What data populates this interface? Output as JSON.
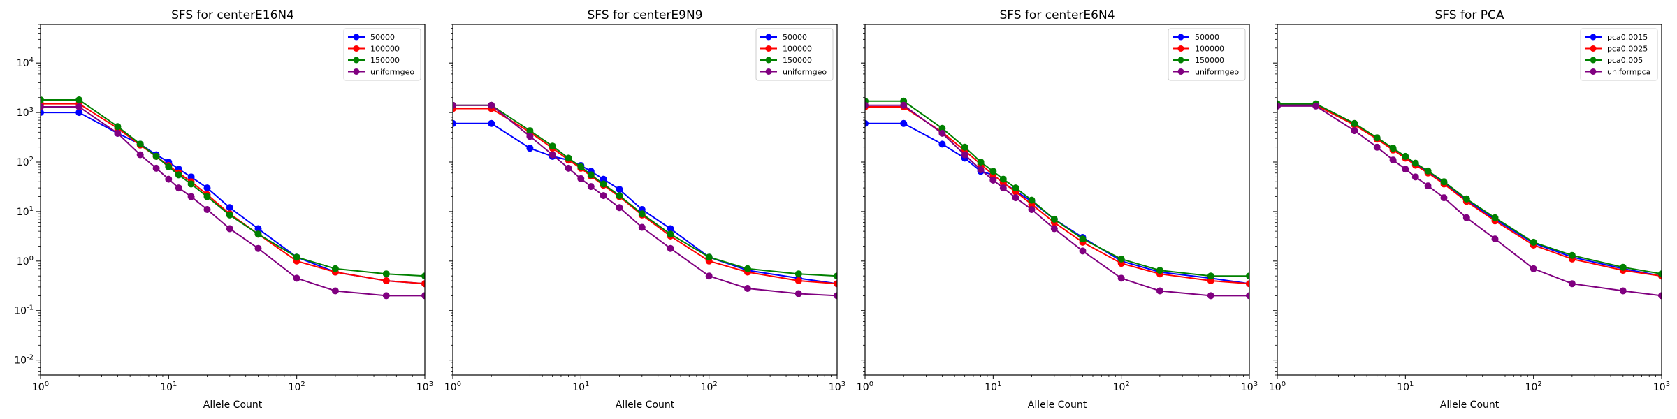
{
  "figure": {
    "xlabel": "Allele Count"
  },
  "chart_data": [
    {
      "type": "line",
      "title": "SFS for centerE16N4",
      "xlabel": "Allele Count",
      "ylabel": "",
      "xscale": "log",
      "yscale": "log",
      "xlim": [
        1,
        1000
      ],
      "ylim": [
        0.005,
        60000
      ],
      "xticks": [
        "10^0",
        "10^1",
        "10^2",
        "10^3"
      ],
      "yticks": [
        "10^-2",
        "10^-1",
        "10^0",
        "10^1",
        "10^2",
        "10^3",
        "10^4"
      ],
      "legend_position": "top-right",
      "series": [
        {
          "name": "50000",
          "color": "#0000ff",
          "x": [
            1,
            2,
            4,
            6,
            8,
            10,
            12,
            15,
            20,
            30,
            50,
            100,
            200,
            500,
            1000
          ],
          "y": [
            1000,
            1000,
            380,
            230,
            140,
            100,
            72,
            50,
            30,
            12,
            4.5,
            1.2,
            0.6,
            0.4,
            0.35
          ]
        },
        {
          "name": "100000",
          "color": "#ff0000",
          "x": [
            1,
            2,
            4,
            6,
            8,
            10,
            12,
            15,
            20,
            30,
            50,
            100,
            200,
            500,
            1000
          ],
          "y": [
            1500,
            1500,
            480,
            220,
            130,
            85,
            60,
            40,
            22,
            9,
            3.5,
            1.0,
            0.6,
            0.4,
            0.35
          ]
        },
        {
          "name": "150000",
          "color": "#008000",
          "x": [
            1,
            2,
            4,
            6,
            8,
            10,
            12,
            15,
            20,
            30,
            50,
            100,
            200,
            500,
            1000
          ],
          "y": [
            1800,
            1800,
            520,
            230,
            130,
            80,
            55,
            36,
            20,
            8.5,
            3.5,
            1.2,
            0.7,
            0.55,
            0.5
          ]
        },
        {
          "name": "uniformgeo",
          "color": "#800080",
          "x": [
            1,
            2,
            4,
            6,
            8,
            10,
            12,
            15,
            20,
            30,
            50,
            100,
            200,
            500,
            1000
          ],
          "y": [
            1300,
            1300,
            380,
            140,
            75,
            45,
            30,
            20,
            11,
            4.5,
            1.8,
            0.45,
            0.25,
            0.2,
            0.2
          ]
        }
      ]
    },
    {
      "type": "line",
      "title": "SFS for centerE9N9",
      "xlabel": "Allele Count",
      "ylabel": "",
      "xscale": "log",
      "yscale": "log",
      "xlim": [
        1,
        1000
      ],
      "ylim": [
        0.005,
        60000
      ],
      "xticks": [
        "10^0",
        "10^1",
        "10^2",
        "10^3"
      ],
      "yticks": [],
      "legend_position": "top-right",
      "series": [
        {
          "name": "50000",
          "color": "#0000ff",
          "x": [
            1,
            2,
            4,
            6,
            8,
            10,
            12,
            15,
            20,
            30,
            50,
            100,
            200,
            500,
            1000
          ],
          "y": [
            600,
            600,
            190,
            130,
            110,
            85,
            65,
            45,
            28,
            11,
            4.5,
            1.2,
            0.65,
            0.45,
            0.35
          ]
        },
        {
          "name": "100000",
          "color": "#ff0000",
          "x": [
            1,
            2,
            4,
            6,
            8,
            10,
            12,
            15,
            20,
            30,
            50,
            100,
            200,
            500,
            1000
          ],
          "y": [
            1200,
            1200,
            400,
            190,
            110,
            75,
            52,
            34,
            20,
            8.5,
            3.2,
            1.0,
            0.6,
            0.4,
            0.35
          ]
        },
        {
          "name": "150000",
          "color": "#008000",
          "x": [
            1,
            2,
            4,
            6,
            8,
            10,
            12,
            15,
            20,
            30,
            50,
            100,
            200,
            500,
            1000
          ],
          "y": [
            1400,
            1400,
            430,
            210,
            120,
            80,
            55,
            36,
            21,
            9,
            3.5,
            1.2,
            0.7,
            0.55,
            0.5
          ]
        },
        {
          "name": "uniformgeo",
          "color": "#800080",
          "x": [
            1,
            2,
            4,
            6,
            8,
            10,
            12,
            15,
            20,
            30,
            50,
            100,
            200,
            500,
            1000
          ],
          "y": [
            1400,
            1400,
            330,
            140,
            75,
            46,
            32,
            21,
            12,
            4.8,
            1.8,
            0.5,
            0.28,
            0.22,
            0.2
          ]
        }
      ]
    },
    {
      "type": "line",
      "title": "SFS for centerE6N4",
      "xlabel": "Allele Count",
      "ylabel": "",
      "xscale": "log",
      "yscale": "log",
      "xlim": [
        1,
        1000
      ],
      "ylim": [
        0.005,
        60000
      ],
      "xticks": [
        "10^0",
        "10^1",
        "10^2",
        "10^3"
      ],
      "yticks": [],
      "legend_position": "top-right",
      "series": [
        {
          "name": "50000",
          "color": "#0000ff",
          "x": [
            1,
            2,
            4,
            6,
            8,
            10,
            12,
            15,
            20,
            30,
            50,
            100,
            200,
            500,
            1000
          ],
          "y": [
            600,
            600,
            230,
            120,
            65,
            55,
            38,
            26,
            16,
            7,
            3,
            1.0,
            0.6,
            0.45,
            0.35
          ]
        },
        {
          "name": "100000",
          "color": "#ff0000",
          "x": [
            1,
            2,
            4,
            6,
            8,
            10,
            12,
            15,
            20,
            30,
            50,
            100,
            200,
            500,
            1000
          ],
          "y": [
            1300,
            1300,
            400,
            170,
            90,
            55,
            38,
            25,
            14,
            6,
            2.4,
            0.9,
            0.55,
            0.4,
            0.35
          ]
        },
        {
          "name": "150000",
          "color": "#008000",
          "x": [
            1,
            2,
            4,
            6,
            8,
            10,
            12,
            15,
            20,
            30,
            50,
            100,
            200,
            500,
            1000
          ],
          "y": [
            1700,
            1700,
            480,
            200,
            100,
            65,
            45,
            30,
            17,
            7,
            2.8,
            1.1,
            0.65,
            0.5,
            0.5
          ]
        },
        {
          "name": "uniformgeo",
          "color": "#800080",
          "x": [
            1,
            2,
            4,
            6,
            8,
            10,
            12,
            15,
            20,
            30,
            50,
            100,
            200,
            500,
            1000
          ],
          "y": [
            1400,
            1400,
            380,
            140,
            70,
            43,
            30,
            19,
            11,
            4.5,
            1.6,
            0.45,
            0.25,
            0.2,
            0.2
          ]
        }
      ]
    },
    {
      "type": "line",
      "title": "SFS for PCA",
      "xlabel": "Allele Count",
      "ylabel": "",
      "xscale": "log",
      "yscale": "log",
      "xlim": [
        1,
        1000
      ],
      "ylim": [
        0.005,
        60000
      ],
      "xticks": [
        "10^0",
        "10^1",
        "10^2",
        "10^3"
      ],
      "yticks": [],
      "legend_position": "top-right",
      "series": [
        {
          "name": "pca0.0015",
          "color": "#0000ff",
          "x": [
            1,
            2,
            4,
            6,
            8,
            10,
            12,
            15,
            20,
            30,
            50,
            100,
            200,
            500,
            1000
          ],
          "y": [
            1450,
            1450,
            580,
            300,
            180,
            125,
            90,
            62,
            38,
            17,
            7,
            2.3,
            1.2,
            0.7,
            0.5
          ]
        },
        {
          "name": "pca0.0025",
          "color": "#ff0000",
          "x": [
            1,
            2,
            4,
            6,
            8,
            10,
            12,
            15,
            20,
            30,
            50,
            100,
            200,
            500,
            1000
          ],
          "y": [
            1400,
            1400,
            560,
            290,
            175,
            120,
            86,
            60,
            36,
            16,
            6.5,
            2.1,
            1.1,
            0.65,
            0.5
          ]
        },
        {
          "name": "pca0.005",
          "color": "#008000",
          "x": [
            1,
            2,
            4,
            6,
            8,
            10,
            12,
            15,
            20,
            30,
            50,
            100,
            200,
            500,
            1000
          ],
          "y": [
            1500,
            1500,
            600,
            310,
            190,
            130,
            95,
            66,
            40,
            18,
            7.5,
            2.4,
            1.3,
            0.75,
            0.55
          ]
        },
        {
          "name": "uniformpca",
          "color": "#800080",
          "x": [
            1,
            2,
            4,
            6,
            8,
            10,
            12,
            15,
            20,
            30,
            50,
            100,
            200,
            500,
            1000
          ],
          "y": [
            1350,
            1350,
            430,
            200,
            110,
            72,
            50,
            33,
            19,
            7.5,
            2.8,
            0.7,
            0.35,
            0.25,
            0.2
          ]
        }
      ]
    }
  ]
}
